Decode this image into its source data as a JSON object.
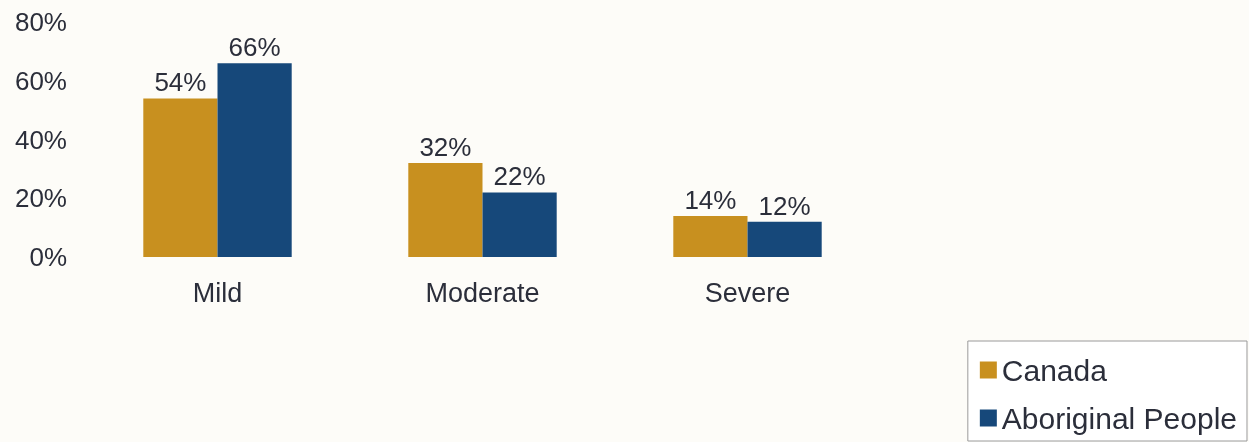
{
  "chart_data": {
    "type": "bar",
    "categories": [
      "Mild",
      "Moderate",
      "Severe"
    ],
    "series": [
      {
        "name": "Canada",
        "color": "#c8901f",
        "values": [
          54,
          32,
          14
        ],
        "value_labels": [
          "54%",
          "32%",
          "14%"
        ]
      },
      {
        "name": "Aboriginal People",
        "color": "#16487a",
        "values": [
          66,
          22,
          12
        ],
        "value_labels": [
          "66%",
          "22%",
          "12%"
        ]
      }
    ],
    "ylim": [
      0,
      80
    ],
    "yticks": [
      {
        "value": 0,
        "label": "0%"
      },
      {
        "value": 20,
        "label": "20%"
      },
      {
        "value": 40,
        "label": "40%"
      },
      {
        "value": 60,
        "label": "60%"
      },
      {
        "value": 80,
        "label": "80%"
      }
    ],
    "legend": "bottom right"
  }
}
